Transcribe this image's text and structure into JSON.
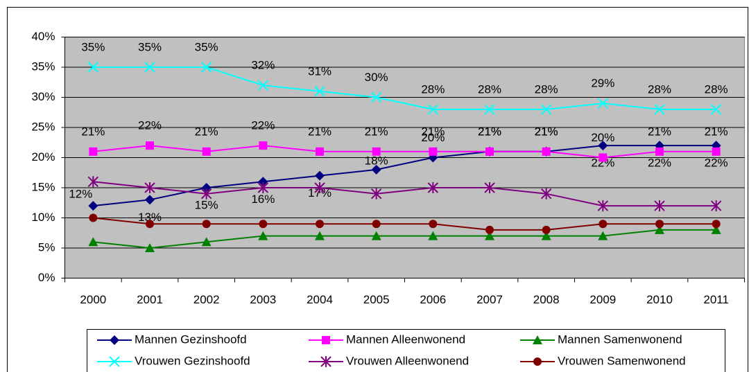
{
  "chart_data": {
    "type": "line",
    "categories": [
      "2000",
      "2001",
      "2002",
      "2003",
      "2004",
      "2005",
      "2006",
      "2007",
      "2008",
      "2009",
      "2010",
      "2011"
    ],
    "ylim": [
      0,
      40
    ],
    "yticks": [
      {
        "value": 0,
        "label": "0%"
      },
      {
        "value": 5,
        "label": "5%"
      },
      {
        "value": 10,
        "label": "10%"
      },
      {
        "value": 15,
        "label": "15%"
      },
      {
        "value": 20,
        "label": "20%"
      },
      {
        "value": 25,
        "label": "25%"
      },
      {
        "value": 30,
        "label": "30%"
      },
      {
        "value": 35,
        "label": "35%"
      },
      {
        "value": 40,
        "label": "40%"
      }
    ],
    "grid": true,
    "legend": "bottom",
    "series": [
      {
        "name": "Mannen Gezinshoofd",
        "color": "#000080",
        "marker": "diamond",
        "values": [
          12,
          13,
          15,
          16,
          17,
          18,
          20,
          21,
          21,
          22,
          22,
          22
        ],
        "value_labels": [
          "12%",
          "13%",
          "15%",
          "16%",
          "17%",
          "18%",
          "20%",
          "21%",
          "21%",
          "22%",
          "22%",
          "22%"
        ]
      },
      {
        "name": "Mannen Alleenwonend",
        "color": "#ff00ff",
        "marker": "square",
        "values": [
          21,
          22,
          21,
          22,
          21,
          21,
          21,
          21,
          21,
          20,
          21,
          21
        ],
        "value_labels": [
          "21%",
          "22%",
          "21%",
          "22%",
          "21%",
          "21%",
          "21%",
          "21%",
          "21%",
          "20%",
          "21%",
          "21%"
        ]
      },
      {
        "name": "Mannen Samenwonend",
        "color": "#008000",
        "marker": "triangle",
        "values": [
          6,
          5,
          6,
          7,
          7,
          7,
          7,
          7,
          7,
          7,
          8,
          8
        ]
      },
      {
        "name": "Vrouwen Gezinshoofd",
        "color": "#00ffff",
        "marker": "x",
        "values": [
          35,
          35,
          35,
          32,
          31,
          30,
          28,
          28,
          28,
          29,
          28,
          28
        ],
        "value_labels": [
          "35%",
          "35%",
          "35%",
          "32%",
          "31%",
          "30%",
          "28%",
          "28%",
          "28%",
          "29%",
          "28%",
          "28%"
        ]
      },
      {
        "name": "Vrouwen Alleenwonend",
        "color": "#800080",
        "marker": "star",
        "values": [
          16,
          15,
          14,
          15,
          15,
          14,
          15,
          15,
          14,
          12,
          12,
          12
        ]
      },
      {
        "name": "Vrouwen Samenwonend",
        "color": "#800000",
        "marker": "circle",
        "values": [
          10,
          9,
          9,
          9,
          9,
          9,
          9,
          8,
          8,
          9,
          9,
          9
        ]
      }
    ]
  }
}
